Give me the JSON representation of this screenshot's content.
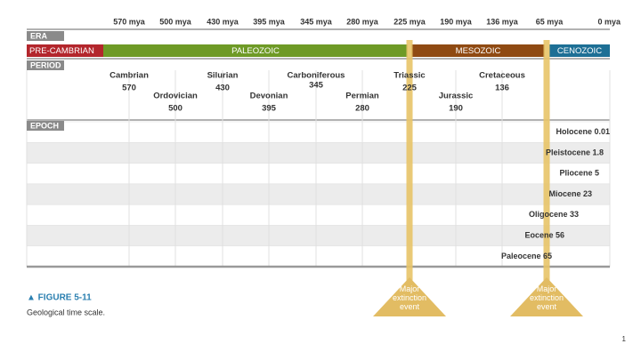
{
  "axis_labels": [
    "570 mya",
    "500 mya",
    "430 mya",
    "395 mya",
    "345 mya",
    "280 mya",
    "225 mya",
    "190 mya",
    "136 mya",
    "65 mya",
    "0 mya"
  ],
  "headers": {
    "era": "ERA",
    "period": "PERIOD",
    "epoch": "EPOCH"
  },
  "eras": [
    {
      "label": "PRE-CAMBRIAN",
      "color": "#b3262c"
    },
    {
      "label": "PALEOZOIC",
      "color": "#6e9a26"
    },
    {
      "label": "MESOZOIC",
      "color": "#8f4a12"
    },
    {
      "label": "CENOZOIC",
      "color": "#1d6f95"
    }
  ],
  "periods": [
    {
      "name": "Cambrian",
      "mya": 570
    },
    {
      "name": "Ordovician",
      "mya": 500
    },
    {
      "name": "Silurian",
      "mya": 430
    },
    {
      "name": "Devonian",
      "mya": 395
    },
    {
      "name": "Carboniferous",
      "mya": 345
    },
    {
      "name": "Permian",
      "mya": 280
    },
    {
      "name": "Triassic",
      "mya": 225
    },
    {
      "name": "Jurassic",
      "mya": 190
    },
    {
      "name": "Cretaceous",
      "mya": 136
    }
  ],
  "epochs": [
    "Holocene 0.01",
    "Pleistocene 1.8",
    "Pliocene 5",
    "Miocene 23",
    "Oligocene 33",
    "Eocene 56",
    "Paleocene 65"
  ],
  "annotations": [
    "Major extinction event",
    "Major extinction event"
  ],
  "figure": {
    "label": "▲ FIGURE 5-11",
    "caption": "Geological time scale."
  },
  "page_number": "1"
}
